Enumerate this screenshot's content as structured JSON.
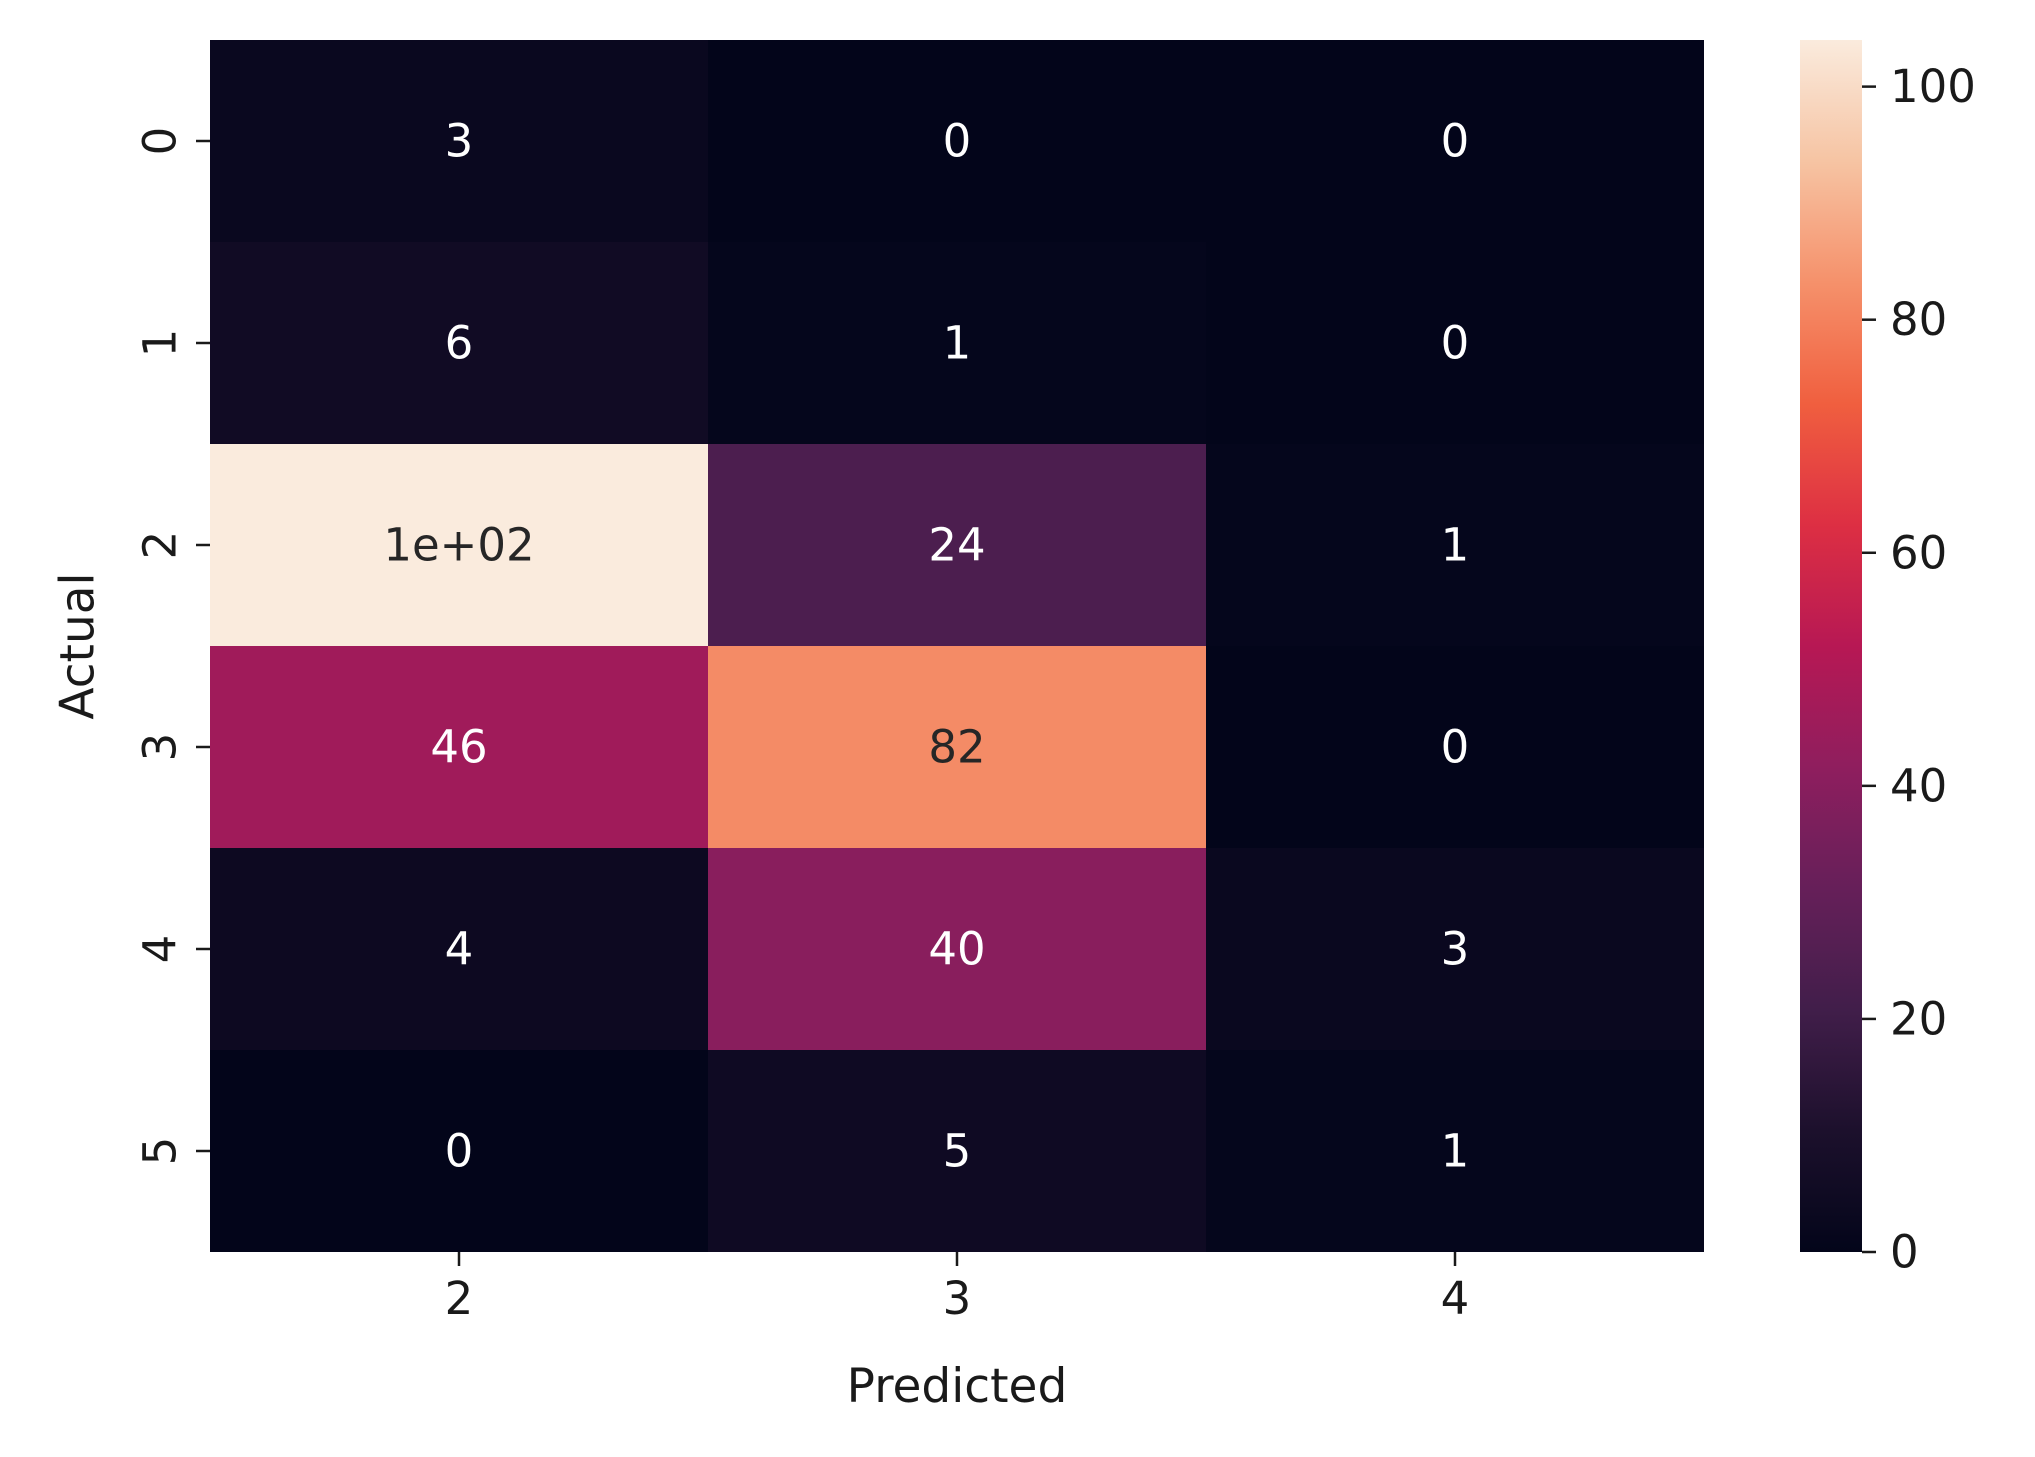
{
  "chart_data": {
    "type": "heatmap",
    "title": "",
    "xlabel": "Predicted",
    "ylabel": "Actual",
    "x_categories": [
      "2",
      "3",
      "4"
    ],
    "y_categories": [
      "0",
      "1",
      "2",
      "3",
      "4",
      "5"
    ],
    "values": [
      [
        3,
        0,
        0
      ],
      [
        6,
        1,
        0
      ],
      [
        104,
        24,
        1
      ],
      [
        46,
        82,
        0
      ],
      [
        4,
        40,
        3
      ],
      [
        0,
        5,
        1
      ]
    ],
    "annotations": [
      [
        "3",
        "0",
        "0"
      ],
      [
        "6",
        "1",
        "0"
      ],
      [
        "1e+02",
        "24",
        "1"
      ],
      [
        "46",
        "82",
        "0"
      ],
      [
        "4",
        "40",
        "3"
      ],
      [
        "0",
        "5",
        "1"
      ]
    ],
    "colorbar": {
      "colormap": "rocket",
      "vmin": 0,
      "vmax": 104,
      "ticks": [
        0,
        20,
        40,
        60,
        80,
        100
      ],
      "tick_labels": [
        "0",
        "20",
        "40",
        "60",
        "80",
        "100"
      ]
    },
    "grid": false,
    "legend": "colorbar-right"
  }
}
